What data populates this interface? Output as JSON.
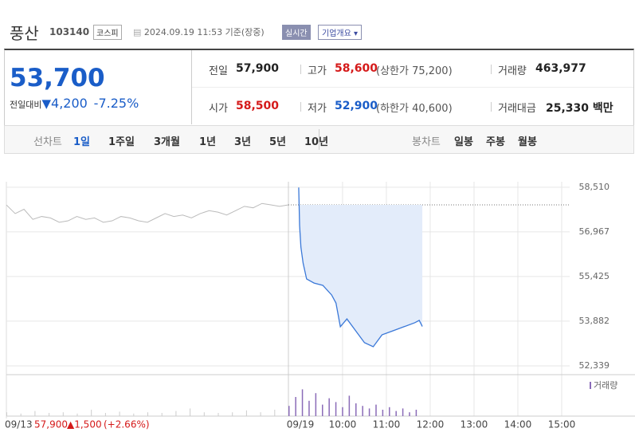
{
  "header": {
    "name": "풍산",
    "code": "103140",
    "market": "코스피",
    "timestamp": "2024.09.19 11:53 기준(장중)",
    "realtime": "실시간",
    "company_info": "기업개요"
  },
  "quote": {
    "price": "53,700",
    "change_label": "전일대비",
    "change": "4,200",
    "change_pct": "-7.25%"
  },
  "stats": [
    {
      "label": "전일",
      "value": "57,900"
    },
    {
      "label": "고가",
      "value": "58,600",
      "note": "(상한가 75,200)"
    },
    {
      "label": "거래량",
      "value": "463,977"
    },
    {
      "label": "시가",
      "value": "58,500"
    },
    {
      "label": "저가",
      "value": "52,900",
      "note": "(하한가 40,600)"
    },
    {
      "label": "거래대금",
      "value": "25,330 백만"
    }
  ],
  "tabs": {
    "line_label": "선차트",
    "line": [
      "1일",
      "1주일",
      "3개월",
      "1년",
      "3년",
      "5년",
      "10년"
    ],
    "candle_label": "봉차트",
    "candle": [
      "일봉",
      "주봉",
      "월봉"
    ]
  },
  "chart_data": {
    "type": "line",
    "ylim": [
      52090,
      58700
    ],
    "xlim": [
      2.33,
      16
    ],
    "yticks": [
      {
        "value": 52339,
        "label": "52,339"
      },
      {
        "value": 53882,
        "label": "53,882"
      },
      {
        "value": 55425,
        "label": "55,425"
      },
      {
        "value": 56967,
        "label": "56,967"
      },
      {
        "value": 58510,
        "label": "58,510"
      }
    ],
    "xticks": [
      {
        "value": 10,
        "label": "10:00"
      },
      {
        "value": 11,
        "label": "11:00"
      },
      {
        "value": 12,
        "label": "12:00"
      },
      {
        "value": 13,
        "label": "13:00"
      },
      {
        "value": 14,
        "label": "14:00"
      },
      {
        "value": 15,
        "label": "15:00"
      }
    ],
    "start_label": "09/19",
    "prev_close": 57900,
    "prev_day": {
      "color": "#bbbbbb",
      "values": [
        57900,
        57600,
        57750,
        57400,
        57500,
        57450,
        57300,
        57350,
        57500,
        57400,
        57450,
        57300,
        57350,
        57500,
        57450,
        57350,
        57300,
        57450,
        57600,
        57500,
        57550,
        57450,
        57600,
        57700,
        57650,
        57550,
        57700,
        57850,
        57800,
        57950,
        57900,
        57850,
        57900
      ]
    },
    "series": [
      {
        "name": "today",
        "color": "#3a78d8",
        "x": [
          9.0,
          9.02,
          9.05,
          9.1,
          9.18,
          9.35,
          9.55,
          9.75,
          9.85,
          9.95,
          10.1,
          10.3,
          10.5,
          10.7,
          10.9,
          11.15,
          11.4,
          11.65,
          11.75,
          11.82
        ],
        "values": [
          58500,
          57190,
          56440,
          55890,
          55340,
          55200,
          55120,
          54790,
          54510,
          53690,
          53960,
          53550,
          53140,
          53000,
          53410,
          53550,
          53690,
          53830,
          53910,
          53700
        ]
      }
    ],
    "volume_label": "거래량",
    "vlim": [
      0,
      25000
    ],
    "prev_volume": [
      3000,
      2000,
      4000,
      2500,
      3000,
      2000,
      5000,
      2500,
      3500,
      2000,
      3000,
      2500,
      4000,
      6000,
      3000,
      2500,
      3000,
      4500,
      3000,
      5000
    ],
    "volume": [
      8000,
      15000,
      21000,
      12000,
      18000,
      9000,
      14000,
      11000,
      7000,
      16000,
      10000,
      8000,
      6000,
      9000,
      5000,
      7000,
      4000,
      6000,
      3000,
      5000
    ],
    "footer": {
      "date": "09/13",
      "close": "57,900",
      "change": "▲1,500",
      "change_pct": "(+2.66%)"
    }
  }
}
